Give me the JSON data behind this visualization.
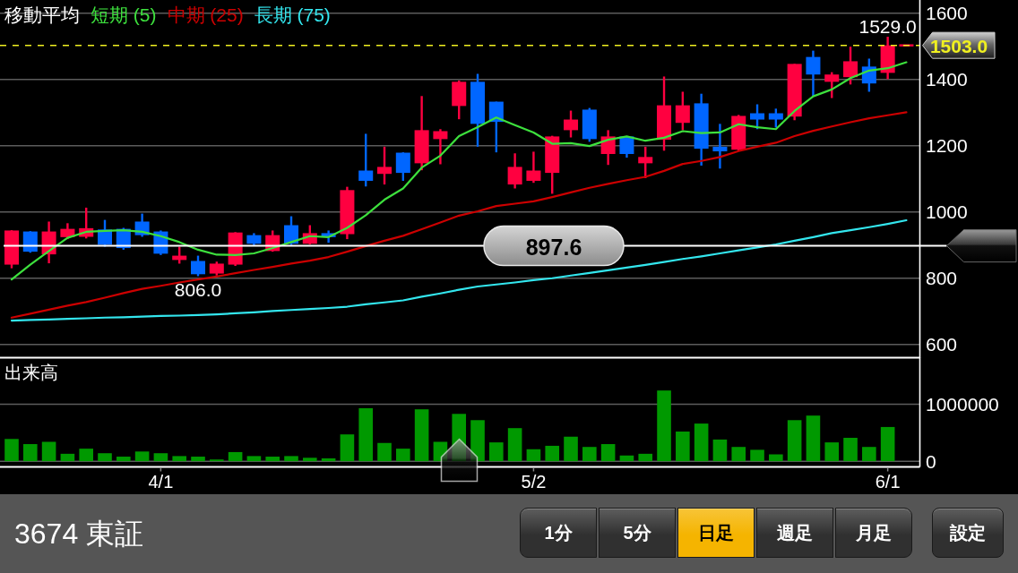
{
  "chart_data": [
    {
      "type": "candlestick",
      "legend": "top left",
      "legend_title": "移動平均",
      "tick_labels": "y",
      "grid": "y",
      "categories": [
        null,
        null,
        null,
        null,
        null,
        null,
        null,
        null,
        "4/1",
        null,
        null,
        null,
        null,
        null,
        null,
        null,
        null,
        null,
        null,
        null,
        null,
        null,
        null,
        null,
        null,
        null,
        null,
        null,
        "5/2",
        null,
        null,
        null,
        null,
        null,
        null,
        null,
        null,
        null,
        null,
        null,
        null,
        null,
        null,
        null,
        null,
        null,
        null,
        "6/1",
        null
      ],
      "ohlc": [
        [
          841,
          945,
          830,
          944
        ],
        [
          941,
          942,
          877,
          880
        ],
        [
          872,
          971,
          845,
          941
        ],
        [
          924,
          966,
          918,
          949
        ],
        [
          925,
          1013,
          920,
          951
        ],
        [
          947,
          976,
          895,
          901
        ],
        [
          949,
          952,
          886,
          891
        ],
        [
          971,
          995,
          925,
          930
        ],
        [
          941,
          944,
          870,
          874
        ],
        [
          855,
          895,
          844,
          868
        ],
        [
          852,
          868,
          806,
          812
        ],
        [
          814,
          850,
          808,
          844
        ],
        [
          841,
          939,
          837,
          938
        ],
        [
          930,
          936,
          898,
          904
        ],
        [
          882,
          944,
          880,
          930
        ],
        [
          960,
          987,
          900,
          904
        ],
        [
          904,
          960,
          902,
          936
        ],
        [
          936,
          944,
          907,
          924
        ],
        [
          933,
          1076,
          918,
          1066
        ],
        [
          1125,
          1236,
          1077,
          1094
        ],
        [
          1115,
          1197,
          1083,
          1136
        ],
        [
          1179,
          1180,
          1094,
          1118
        ],
        [
          1147,
          1350,
          1126,
          1247
        ],
        [
          1220,
          1250,
          1144,
          1244
        ],
        [
          1320,
          1397,
          1280,
          1393
        ],
        [
          1393,
          1417,
          1197,
          1266
        ],
        [
          1333,
          1333,
          1180,
          1272
        ],
        [
          1083,
          1177,
          1071,
          1136
        ],
        [
          1094,
          1182,
          1088,
          1125
        ],
        [
          1118,
          1230,
          1055,
          1228
        ],
        [
          1247,
          1306,
          1225,
          1279
        ],
        [
          1309,
          1314,
          1212,
          1220
        ],
        [
          1175,
          1247,
          1142,
          1228
        ],
        [
          1228,
          1228,
          1164,
          1175
        ],
        [
          1147,
          1197,
          1102,
          1166
        ],
        [
          1218,
          1409,
          1185,
          1322
        ],
        [
          1269,
          1363,
          1247,
          1322
        ],
        [
          1328,
          1357,
          1140,
          1191
        ],
        [
          1197,
          1266,
          1131,
          1183
        ],
        [
          1188,
          1293,
          1185,
          1290
        ],
        [
          1298,
          1325,
          1250,
          1279
        ],
        [
          1298,
          1312,
          1255,
          1279
        ],
        [
          1288,
          1447,
          1277,
          1447
        ],
        [
          1468,
          1487,
          1349,
          1415
        ],
        [
          1393,
          1422,
          1344,
          1415
        ],
        [
          1407,
          1499,
          1385,
          1455
        ],
        [
          1439,
          1463,
          1363,
          1388
        ],
        [
          1420,
          1529,
          1401,
          1503
        ],
        [
          1503,
          1503,
          1503,
          1503
        ]
      ],
      "colors": [
        "#ff0040",
        "#0066ff",
        "#ff0040",
        "#ff0040",
        "#ff0040",
        "#0066ff",
        "#0066ff",
        "#0066ff",
        "#0066ff",
        "#ff0040",
        "#0066ff",
        "#ff0040",
        "#ff0040",
        "#0066ff",
        "#ff0040",
        "#0066ff",
        "#ff0040",
        "#0066ff",
        "#ff0040",
        "#0066ff",
        "#ff0040",
        "#0066ff",
        "#ff0040",
        "#ff0040",
        "#ff0040",
        "#0066ff",
        "#0066ff",
        "#ff0040",
        "#ff0040",
        "#ff0040",
        "#ff0040",
        "#0066ff",
        "#ff0040",
        "#0066ff",
        "#ff0040",
        "#ff0040",
        "#ff0040",
        "#0066ff",
        "#0066ff",
        "#ff0040",
        "#0066ff",
        "#0066ff",
        "#ff0040",
        "#0066ff",
        "#ff0040",
        "#ff0040",
        "#0066ff",
        "#ff0040",
        "#ff0040"
      ],
      "series": [
        {
          "name": "短期 (5)",
          "type": "line",
          "color": "#3de03d",
          "values": [
            796,
            841,
            882,
            922,
            940,
            943,
            945,
            940,
            927,
            909,
            886,
            871,
            870,
            875,
            891,
            909,
            927,
            924,
            952,
            990,
            1037,
            1071,
            1134,
            1170,
            1229,
            1256,
            1285,
            1262,
            1240,
            1206,
            1208,
            1199,
            1218,
            1228,
            1215,
            1224,
            1244,
            1238,
            1240,
            1265,
            1256,
            1250,
            1305,
            1349,
            1370,
            1404,
            1427,
            1434,
            1452
          ]
        },
        {
          "name": "中期 (25)",
          "type": "line",
          "color": "#cc0000",
          "values": [
            681,
            693,
            705,
            717,
            728,
            741,
            755,
            768,
            777,
            787,
            796,
            805,
            815,
            825,
            834,
            844,
            853,
            864,
            880,
            897,
            913,
            928,
            948,
            968,
            989,
            1002,
            1018,
            1025,
            1032,
            1045,
            1059,
            1073,
            1085,
            1096,
            1106,
            1124,
            1145,
            1154,
            1166,
            1184,
            1197,
            1209,
            1229,
            1245,
            1258,
            1271,
            1283,
            1292,
            1301
          ]
        },
        {
          "name": "長期 (75)",
          "type": "line",
          "color": "#33e6ee",
          "values": [
            672,
            674,
            675,
            677,
            679,
            681,
            682,
            684,
            686,
            687,
            689,
            691,
            694,
            697,
            701,
            704,
            707,
            710,
            714,
            721,
            727,
            733,
            744,
            754,
            765,
            775,
            781,
            787,
            794,
            800,
            808,
            816,
            824,
            832,
            840,
            849,
            858,
            866,
            875,
            884,
            893,
            902,
            913,
            924,
            936,
            945,
            954,
            964,
            975
          ]
        }
      ],
      "ylim": [
        560,
        1640
      ],
      "yticks": [
        600,
        800,
        1000,
        1200,
        1400,
        1600
      ],
      "ref_lines": [
        {
          "axis": "y",
          "value": 1503,
          "color": "#f0f020",
          "line_style": "dashed"
        },
        {
          "axis": "y",
          "value": 897.6,
          "color": "#ffffff",
          "line_style": "solid"
        }
      ],
      "annotations": [
        {
          "text": "1529.0",
          "x": "6/1",
          "y": 1529
        },
        {
          "text": "806.0",
          "y": 806
        },
        "1503.0",
        {
          "text": "897.6",
          "y": 897.6
        }
      ]
    },
    {
      "type": "bar",
      "title": "出来高",
      "grid": "y",
      "color": "#009900",
      "categories": [
        null,
        null,
        null,
        null,
        null,
        null,
        null,
        null,
        "4/1",
        null,
        null,
        null,
        null,
        null,
        null,
        null,
        null,
        null,
        null,
        null,
        null,
        null,
        null,
        null,
        null,
        null,
        null,
        null,
        "5/2",
        null,
        null,
        null,
        null,
        null,
        null,
        null,
        null,
        null,
        null,
        null,
        null,
        null,
        null,
        null,
        null,
        null,
        null,
        "6/1",
        null
      ],
      "values": [
        390000,
        300000,
        340000,
        130000,
        220000,
        140000,
        80000,
        170000,
        140000,
        90000,
        80000,
        30000,
        160000,
        90000,
        80000,
        90000,
        60000,
        50000,
        470000,
        930000,
        320000,
        220000,
        910000,
        340000,
        830000,
        720000,
        330000,
        580000,
        210000,
        270000,
        430000,
        250000,
        300000,
        100000,
        130000,
        1240000,
        520000,
        660000,
        380000,
        250000,
        200000,
        120000,
        720000,
        800000,
        330000,
        410000,
        250000,
        600000,
        null
      ],
      "ylim": [
        -100000,
        1800000
      ],
      "yticks": [
        0,
        1000000
      ]
    },
    {
      "type": "other",
      "title": "3674 東証",
      "annotations": [
        "1分",
        "5分",
        "日足",
        "週足",
        "月足",
        "設定"
      ],
      "colors": [
        "#303030",
        "#303030",
        "#f5b400",
        "#303030",
        "#303030",
        "#303030"
      ]
    }
  ]
}
